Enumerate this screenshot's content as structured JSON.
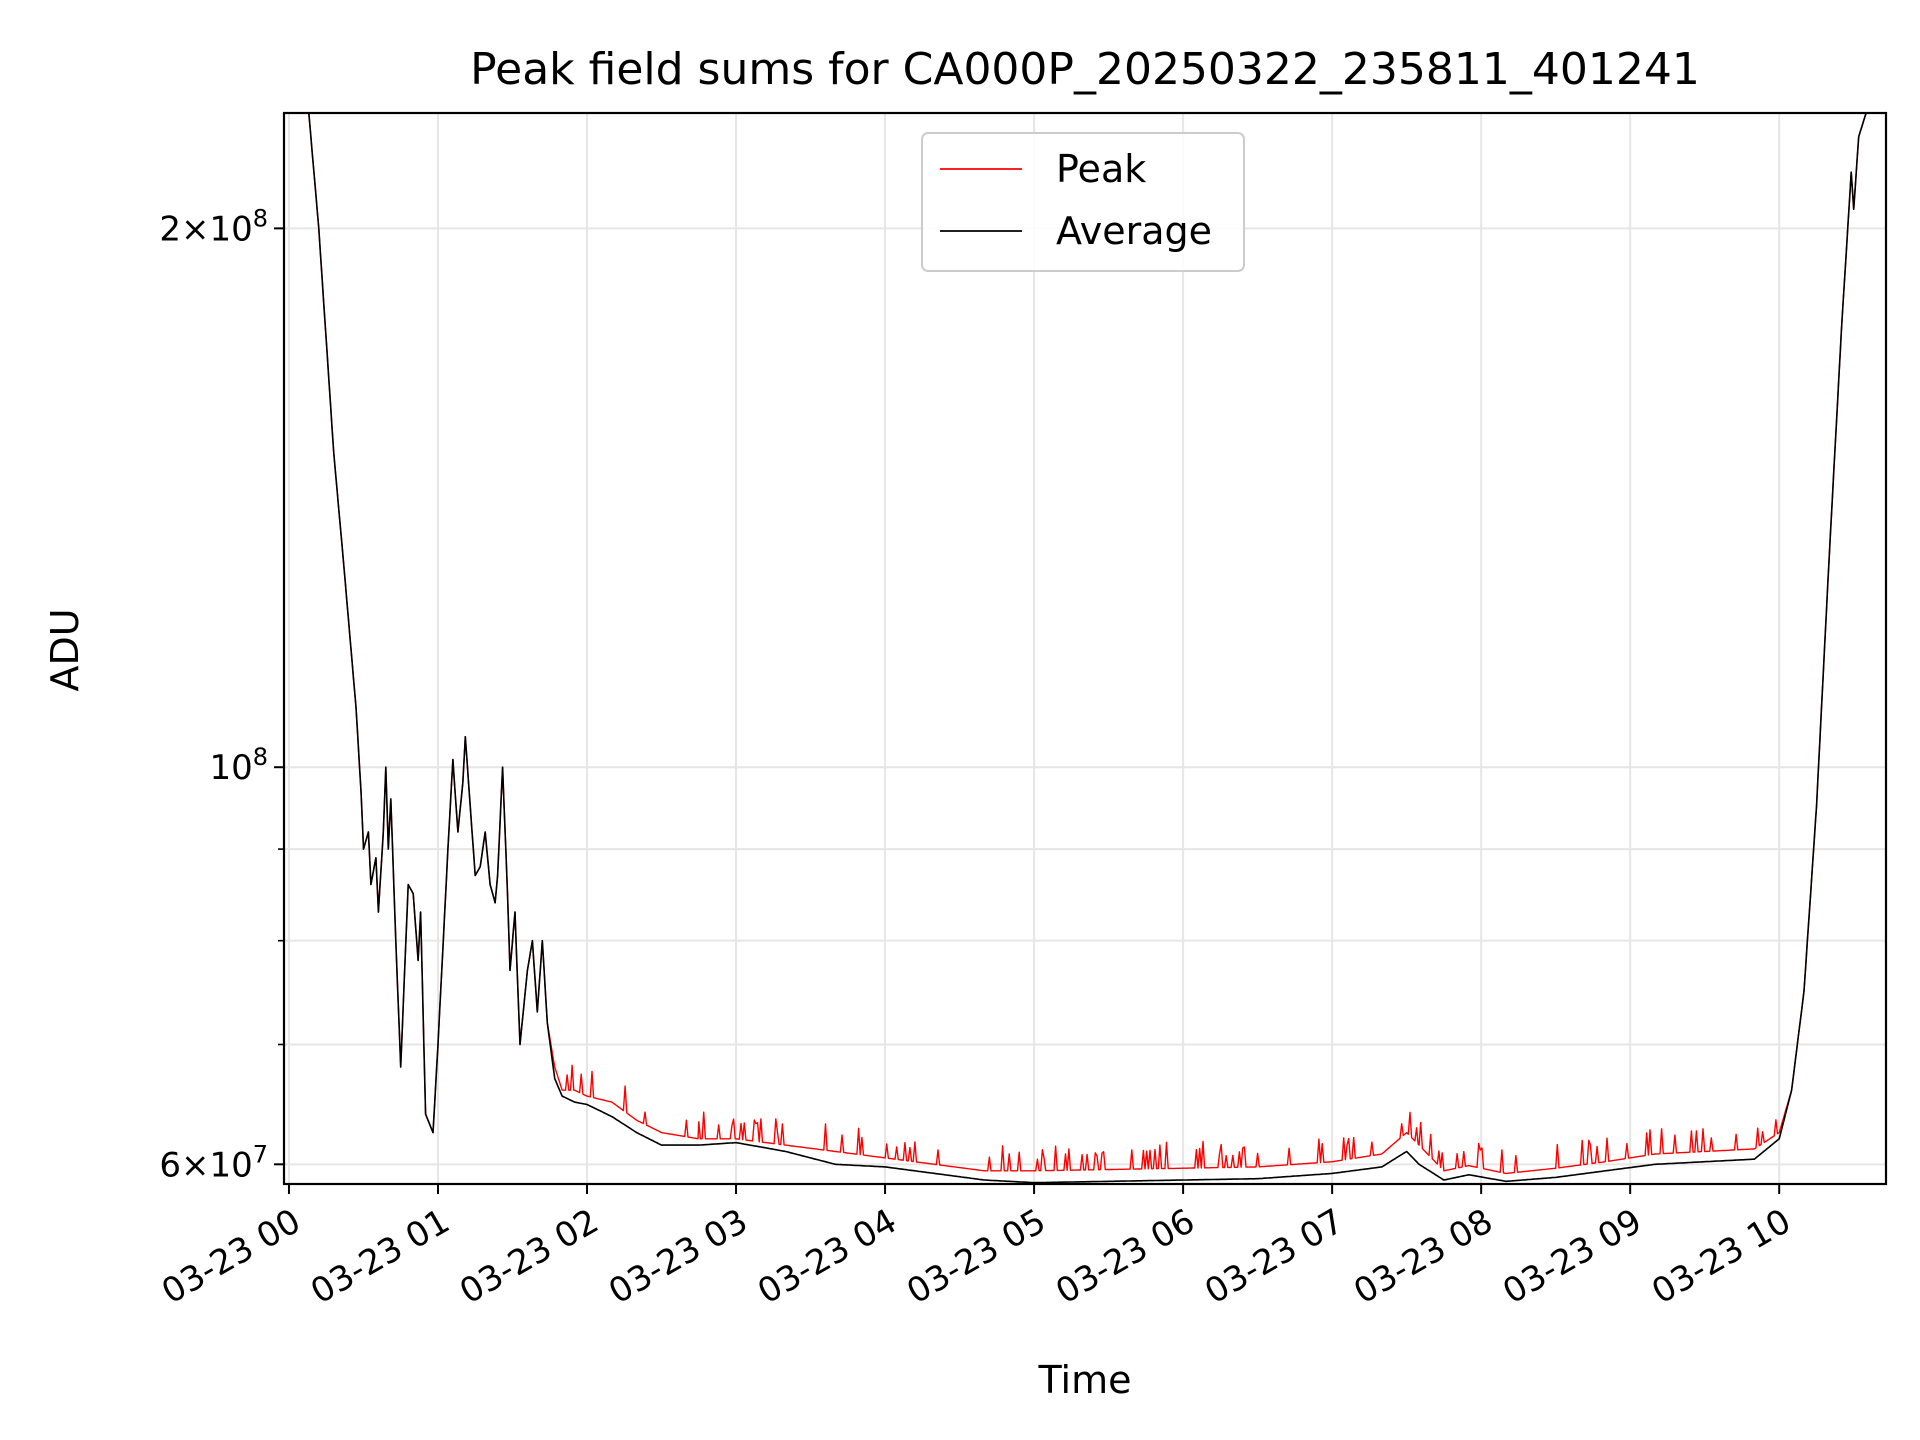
{
  "chart_data": {
    "type": "line",
    "title": "Peak field sums for CA000P_20250322_235811_401241",
    "xlabel": "Time",
    "ylabel": "ADU",
    "yscale": "log",
    "grid": true,
    "legend_position": "top-center",
    "xlim": [
      "2025-03-22 23:58",
      "2025-03-23 10:43"
    ],
    "ylim": [
      58500000,
      232000000
    ],
    "x_ticks": [
      "03-23 00",
      "03-23 01",
      "03-23 02",
      "03-23 03",
      "03-23 04",
      "03-23 05",
      "03-23 06",
      "03-23 07",
      "03-23 08",
      "03-23 09",
      "03-23 10"
    ],
    "y_tick_labels": [
      {
        "value": 60000000,
        "base": "6",
        "exp": "7"
      },
      {
        "value": 100000000,
        "base": "",
        "exp": "8"
      },
      {
        "value": 200000000,
        "base": "2",
        "exp": "8"
      }
    ],
    "y_minor_ticks": [
      70000000,
      80000000,
      90000000
    ],
    "colors": {
      "peak": "#ff0000",
      "average": "#000000",
      "grid": "#e6e6e6"
    },
    "series": [
      {
        "name": "Peak",
        "color": "#ff0000",
        "spiky": true,
        "points": [
          [
            "2025-03-22 23:58",
            232000000
          ],
          [
            "2025-03-23 00:08",
            232000000
          ],
          [
            "2025-03-23 00:12",
            200000000
          ],
          [
            "2025-03-23 00:18",
            150000000
          ],
          [
            "2025-03-23 00:22",
            130000000
          ],
          [
            "2025-03-23 00:27",
            108000000
          ],
          [
            "2025-03-23 00:29",
            97000000
          ],
          [
            "2025-03-23 00:30",
            90000000
          ],
          [
            "2025-03-23 00:32",
            92000000
          ],
          [
            "2025-03-23 00:33",
            86000000
          ],
          [
            "2025-03-23 00:35",
            89000000
          ],
          [
            "2025-03-23 00:36",
            83000000
          ],
          [
            "2025-03-23 00:38",
            92000000
          ],
          [
            "2025-03-23 00:39",
            100000000
          ],
          [
            "2025-03-23 00:40",
            90000000
          ],
          [
            "2025-03-23 00:41",
            96000000
          ],
          [
            "2025-03-23 00:43",
            80000000
          ],
          [
            "2025-03-23 00:45",
            68000000
          ],
          [
            "2025-03-23 00:48",
            86000000
          ],
          [
            "2025-03-23 00:50",
            85000000
          ],
          [
            "2025-03-23 00:52",
            78000000
          ],
          [
            "2025-03-23 00:53",
            83000000
          ],
          [
            "2025-03-23 00:55",
            64000000
          ],
          [
            "2025-03-23 00:58",
            62500000
          ],
          [
            "2025-03-23 01:00",
            70000000
          ],
          [
            "2025-03-23 01:04",
            90000000
          ],
          [
            "2025-03-23 01:06",
            101000000
          ],
          [
            "2025-03-23 01:08",
            92000000
          ],
          [
            "2025-03-23 01:10",
            98000000
          ],
          [
            "2025-03-23 01:11",
            104000000
          ],
          [
            "2025-03-23 01:13",
            95000000
          ],
          [
            "2025-03-23 01:15",
            87000000
          ],
          [
            "2025-03-23 01:17",
            88000000
          ],
          [
            "2025-03-23 01:19",
            92000000
          ],
          [
            "2025-03-23 01:21",
            86000000
          ],
          [
            "2025-03-23 01:23",
            84000000
          ],
          [
            "2025-03-23 01:24",
            87000000
          ],
          [
            "2025-03-23 01:26",
            100000000
          ],
          [
            "2025-03-23 01:28",
            85000000
          ],
          [
            "2025-03-23 01:29",
            77000000
          ],
          [
            "2025-03-23 01:31",
            83000000
          ],
          [
            "2025-03-23 01:33",
            70000000
          ],
          [
            "2025-03-23 01:36",
            77000000
          ],
          [
            "2025-03-23 01:38",
            80000000
          ],
          [
            "2025-03-23 01:40",
            73000000
          ],
          [
            "2025-03-23 01:42",
            80000000
          ],
          [
            "2025-03-23 01:44",
            72000000
          ],
          [
            "2025-03-23 01:47",
            68000000
          ],
          [
            "2025-03-23 01:50",
            66000000
          ],
          [
            "2025-03-23 01:55",
            66000000
          ],
          [
            "2025-03-23 02:00",
            65500000
          ],
          [
            "2025-03-23 02:10",
            65000000
          ],
          [
            "2025-03-23 02:20",
            63500000
          ],
          [
            "2025-03-23 02:30",
            62500000
          ],
          [
            "2025-03-23 02:45",
            62000000
          ],
          [
            "2025-03-23 03:00",
            62000000
          ],
          [
            "2025-03-23 03:20",
            61500000
          ],
          [
            "2025-03-23 03:40",
            61000000
          ],
          [
            "2025-03-23 04:00",
            60500000
          ],
          [
            "2025-03-23 04:20",
            60000000
          ],
          [
            "2025-03-23 04:40",
            59500000
          ],
          [
            "2025-03-23 05:00",
            59500000
          ],
          [
            "2025-03-23 05:30",
            59600000
          ],
          [
            "2025-03-23 06:00",
            59700000
          ],
          [
            "2025-03-23 06:30",
            59800000
          ],
          [
            "2025-03-23 07:00",
            60200000
          ],
          [
            "2025-03-23 07:20",
            60800000
          ],
          [
            "2025-03-23 07:30",
            62500000
          ],
          [
            "2025-03-23 07:35",
            61500000
          ],
          [
            "2025-03-23 07:45",
            59500000
          ],
          [
            "2025-03-23 07:55",
            59900000
          ],
          [
            "2025-03-23 08:10",
            59300000
          ],
          [
            "2025-03-23 08:30",
            59700000
          ],
          [
            "2025-03-23 08:50",
            60200000
          ],
          [
            "2025-03-23 09:10",
            60800000
          ],
          [
            "2025-03-23 09:30",
            61000000
          ],
          [
            "2025-03-23 09:50",
            61200000
          ],
          [
            "2025-03-23 10:00",
            62500000
          ],
          [
            "2025-03-23 10:05",
            66000000
          ],
          [
            "2025-03-23 10:10",
            75000000
          ],
          [
            "2025-03-23 10:15",
            95000000
          ],
          [
            "2025-03-23 10:20",
            130000000
          ],
          [
            "2025-03-23 10:25",
            175000000
          ],
          [
            "2025-03-23 10:29",
            215000000
          ],
          [
            "2025-03-23 10:30",
            205000000
          ],
          [
            "2025-03-23 10:32",
            225000000
          ],
          [
            "2025-03-23 10:35",
            232000000
          ],
          [
            "2025-03-23 10:43",
            232000000
          ]
        ]
      },
      {
        "name": "Average",
        "color": "#000000",
        "spiky": false,
        "points": [
          [
            "2025-03-22 23:58",
            232000000
          ],
          [
            "2025-03-23 00:08",
            232000000
          ],
          [
            "2025-03-23 00:12",
            200000000
          ],
          [
            "2025-03-23 00:18",
            150000000
          ],
          [
            "2025-03-23 00:22",
            130000000
          ],
          [
            "2025-03-23 00:27",
            108000000
          ],
          [
            "2025-03-23 00:29",
            97000000
          ],
          [
            "2025-03-23 00:30",
            90000000
          ],
          [
            "2025-03-23 00:32",
            92000000
          ],
          [
            "2025-03-23 00:33",
            86000000
          ],
          [
            "2025-03-23 00:35",
            89000000
          ],
          [
            "2025-03-23 00:36",
            83000000
          ],
          [
            "2025-03-23 00:38",
            92000000
          ],
          [
            "2025-03-23 00:39",
            100000000
          ],
          [
            "2025-03-23 00:40",
            90000000
          ],
          [
            "2025-03-23 00:41",
            96000000
          ],
          [
            "2025-03-23 00:43",
            80000000
          ],
          [
            "2025-03-23 00:45",
            68000000
          ],
          [
            "2025-03-23 00:48",
            86000000
          ],
          [
            "2025-03-23 00:50",
            85000000
          ],
          [
            "2025-03-23 00:52",
            78000000
          ],
          [
            "2025-03-23 00:53",
            83000000
          ],
          [
            "2025-03-23 00:55",
            64000000
          ],
          [
            "2025-03-23 00:58",
            62500000
          ],
          [
            "2025-03-23 01:00",
            70000000
          ],
          [
            "2025-03-23 01:04",
            90000000
          ],
          [
            "2025-03-23 01:06",
            101000000
          ],
          [
            "2025-03-23 01:08",
            92000000
          ],
          [
            "2025-03-23 01:10",
            98000000
          ],
          [
            "2025-03-23 01:11",
            104000000
          ],
          [
            "2025-03-23 01:13",
            95000000
          ],
          [
            "2025-03-23 01:15",
            87000000
          ],
          [
            "2025-03-23 01:17",
            88000000
          ],
          [
            "2025-03-23 01:19",
            92000000
          ],
          [
            "2025-03-23 01:21",
            86000000
          ],
          [
            "2025-03-23 01:23",
            84000000
          ],
          [
            "2025-03-23 01:24",
            87000000
          ],
          [
            "2025-03-23 01:26",
            100000000
          ],
          [
            "2025-03-23 01:28",
            85000000
          ],
          [
            "2025-03-23 01:29",
            77000000
          ],
          [
            "2025-03-23 01:31",
            83000000
          ],
          [
            "2025-03-23 01:33",
            70000000
          ],
          [
            "2025-03-23 01:36",
            77000000
          ],
          [
            "2025-03-23 01:38",
            80000000
          ],
          [
            "2025-03-23 01:40",
            73000000
          ],
          [
            "2025-03-23 01:42",
            80000000
          ],
          [
            "2025-03-23 01:44",
            72000000
          ],
          [
            "2025-03-23 01:47",
            67000000
          ],
          [
            "2025-03-23 01:50",
            65500000
          ],
          [
            "2025-03-23 01:55",
            65000000
          ],
          [
            "2025-03-23 02:00",
            64800000
          ],
          [
            "2025-03-23 02:10",
            63800000
          ],
          [
            "2025-03-23 02:20",
            62500000
          ],
          [
            "2025-03-23 02:30",
            61500000
          ],
          [
            "2025-03-23 02:45",
            61500000
          ],
          [
            "2025-03-23 03:00",
            61700000
          ],
          [
            "2025-03-23 03:20",
            61000000
          ],
          [
            "2025-03-23 03:40",
            60000000
          ],
          [
            "2025-03-23 04:00",
            59800000
          ],
          [
            "2025-03-23 04:20",
            59300000
          ],
          [
            "2025-03-23 04:40",
            58800000
          ],
          [
            "2025-03-23 05:00",
            58600000
          ],
          [
            "2025-03-23 05:30",
            58700000
          ],
          [
            "2025-03-23 06:00",
            58800000
          ],
          [
            "2025-03-23 06:30",
            58900000
          ],
          [
            "2025-03-23 07:00",
            59300000
          ],
          [
            "2025-03-23 07:20",
            59800000
          ],
          [
            "2025-03-23 07:30",
            61000000
          ],
          [
            "2025-03-23 07:35",
            60000000
          ],
          [
            "2025-03-23 07:45",
            58800000
          ],
          [
            "2025-03-23 07:55",
            59200000
          ],
          [
            "2025-03-23 08:10",
            58700000
          ],
          [
            "2025-03-23 08:30",
            59000000
          ],
          [
            "2025-03-23 08:50",
            59500000
          ],
          [
            "2025-03-23 09:10",
            60000000
          ],
          [
            "2025-03-23 09:30",
            60200000
          ],
          [
            "2025-03-23 09:50",
            60400000
          ],
          [
            "2025-03-23 10:00",
            62000000
          ],
          [
            "2025-03-23 10:05",
            66000000
          ],
          [
            "2025-03-23 10:10",
            75000000
          ],
          [
            "2025-03-23 10:15",
            95000000
          ],
          [
            "2025-03-23 10:20",
            130000000
          ],
          [
            "2025-03-23 10:25",
            175000000
          ],
          [
            "2025-03-23 10:29",
            215000000
          ],
          [
            "2025-03-23 10:30",
            205000000
          ],
          [
            "2025-03-23 10:32",
            225000000
          ],
          [
            "2025-03-23 10:35",
            232000000
          ],
          [
            "2025-03-23 10:43",
            232000000
          ]
        ]
      }
    ]
  }
}
